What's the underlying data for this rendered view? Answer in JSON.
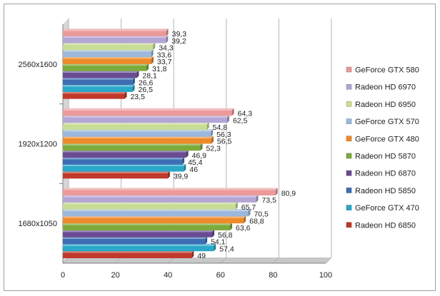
{
  "chart_data": {
    "type": "bar",
    "orientation": "horizontal",
    "categories": [
      "1680x1050",
      "1920x1200",
      "2560x1600"
    ],
    "series": [
      {
        "name": "Radeon HD 6850",
        "color": "#c0392b",
        "values": [
          49,
          39.9,
          23.5
        ]
      },
      {
        "name": "GeForce GTX 470",
        "color": "#2aa7c9",
        "values": [
          57.4,
          46,
          26.5
        ]
      },
      {
        "name": "Radeon HD 5850",
        "color": "#3d6eb4",
        "values": [
          54.1,
          45.4,
          26.6
        ]
      },
      {
        "name": "Radeon HD 6870",
        "color": "#6a4c93",
        "values": [
          56.8,
          46.9,
          28.1
        ]
      },
      {
        "name": "Radeon HD 5870",
        "color": "#7cab3c",
        "values": [
          63.6,
          52.3,
          31.8
        ]
      },
      {
        "name": "GeForce GTX 480",
        "color": "#ee8a2a",
        "values": [
          68.8,
          56.5,
          33.7
        ]
      },
      {
        "name": "GeForce GTX 570",
        "color": "#9cb8dc",
        "values": [
          70.5,
          56.3,
          33.6
        ]
      },
      {
        "name": "Radeon HD 6950",
        "color": "#c8dc94",
        "values": [
          65.7,
          54.8,
          34.3
        ]
      },
      {
        "name": "Radeon HD 6970",
        "color": "#b3a6d6",
        "values": [
          73.5,
          62.5,
          39.2
        ]
      },
      {
        "name": "GeForce GTX 580",
        "color": "#eb9a9a",
        "values": [
          80.9,
          64.3,
          39.3
        ]
      }
    ],
    "value_labels": {
      "1680x1050": [
        "49",
        "57,4",
        "54,1",
        "56,8",
        "63,6",
        "68,8",
        "70,5",
        "65,7",
        "73,5",
        "80,9"
      ],
      "1920x1200": [
        "39,9",
        "46",
        "45,4",
        "46,9",
        "52,3",
        "56,5",
        "56,3",
        "54,8",
        "62,5",
        "64,3"
      ],
      "2560x1600": [
        "23,5",
        "26,5",
        "26,6",
        "28,1",
        "31,8",
        "33,7",
        "33,6",
        "34,3",
        "39,2",
        "39,3"
      ]
    },
    "xlim": [
      0,
      100
    ],
    "xticks": [
      "0",
      "20",
      "40",
      "60",
      "80",
      "100"
    ],
    "grid": true,
    "legend_position": "right",
    "legend_order": "reversed",
    "title": "",
    "xlabel": "",
    "ylabel": ""
  }
}
